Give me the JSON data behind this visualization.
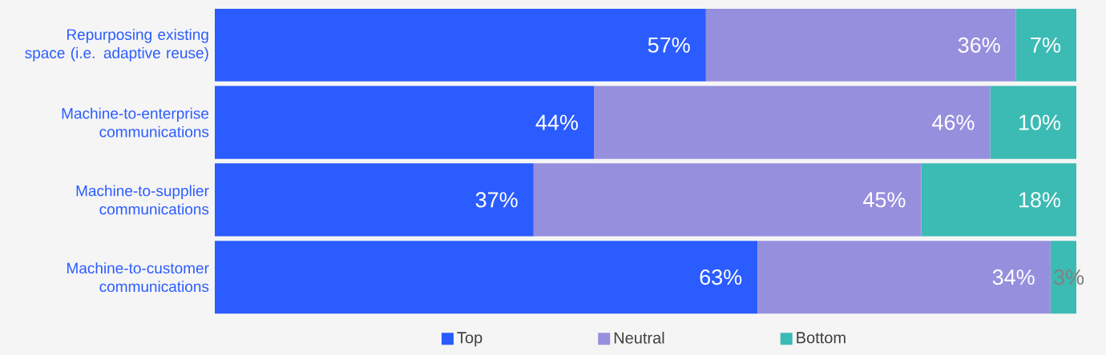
{
  "chart_data": {
    "type": "bar",
    "orientation": "horizontal",
    "stacked": true,
    "legend": "bottom",
    "tick_labels": "y",
    "xlim": [
      0,
      100
    ],
    "categories": [
      "Repurposing existing space (i.e. adaptive reuse)",
      "Machine-to-enterprise communications",
      "Machine-to-supplier communications",
      "Machine-to-customer communications"
    ],
    "series": [
      {
        "name": "Top",
        "color": "#2b5cff",
        "values": [
          57,
          44,
          37,
          63
        ],
        "value_labels": [
          "57%",
          "44%",
          "37%",
          "63%"
        ]
      },
      {
        "name": "Neutral",
        "color": "#968fde",
        "values": [
          36,
          46,
          45,
          34
        ],
        "value_labels": [
          "36%",
          "46%",
          "45%",
          "34%"
        ]
      },
      {
        "name": "Bottom",
        "color": "#3bbbb4",
        "values": [
          7,
          10,
          18,
          3
        ],
        "value_labels": [
          "7%",
          "10%",
          "18%",
          "3%"
        ]
      }
    ]
  }
}
